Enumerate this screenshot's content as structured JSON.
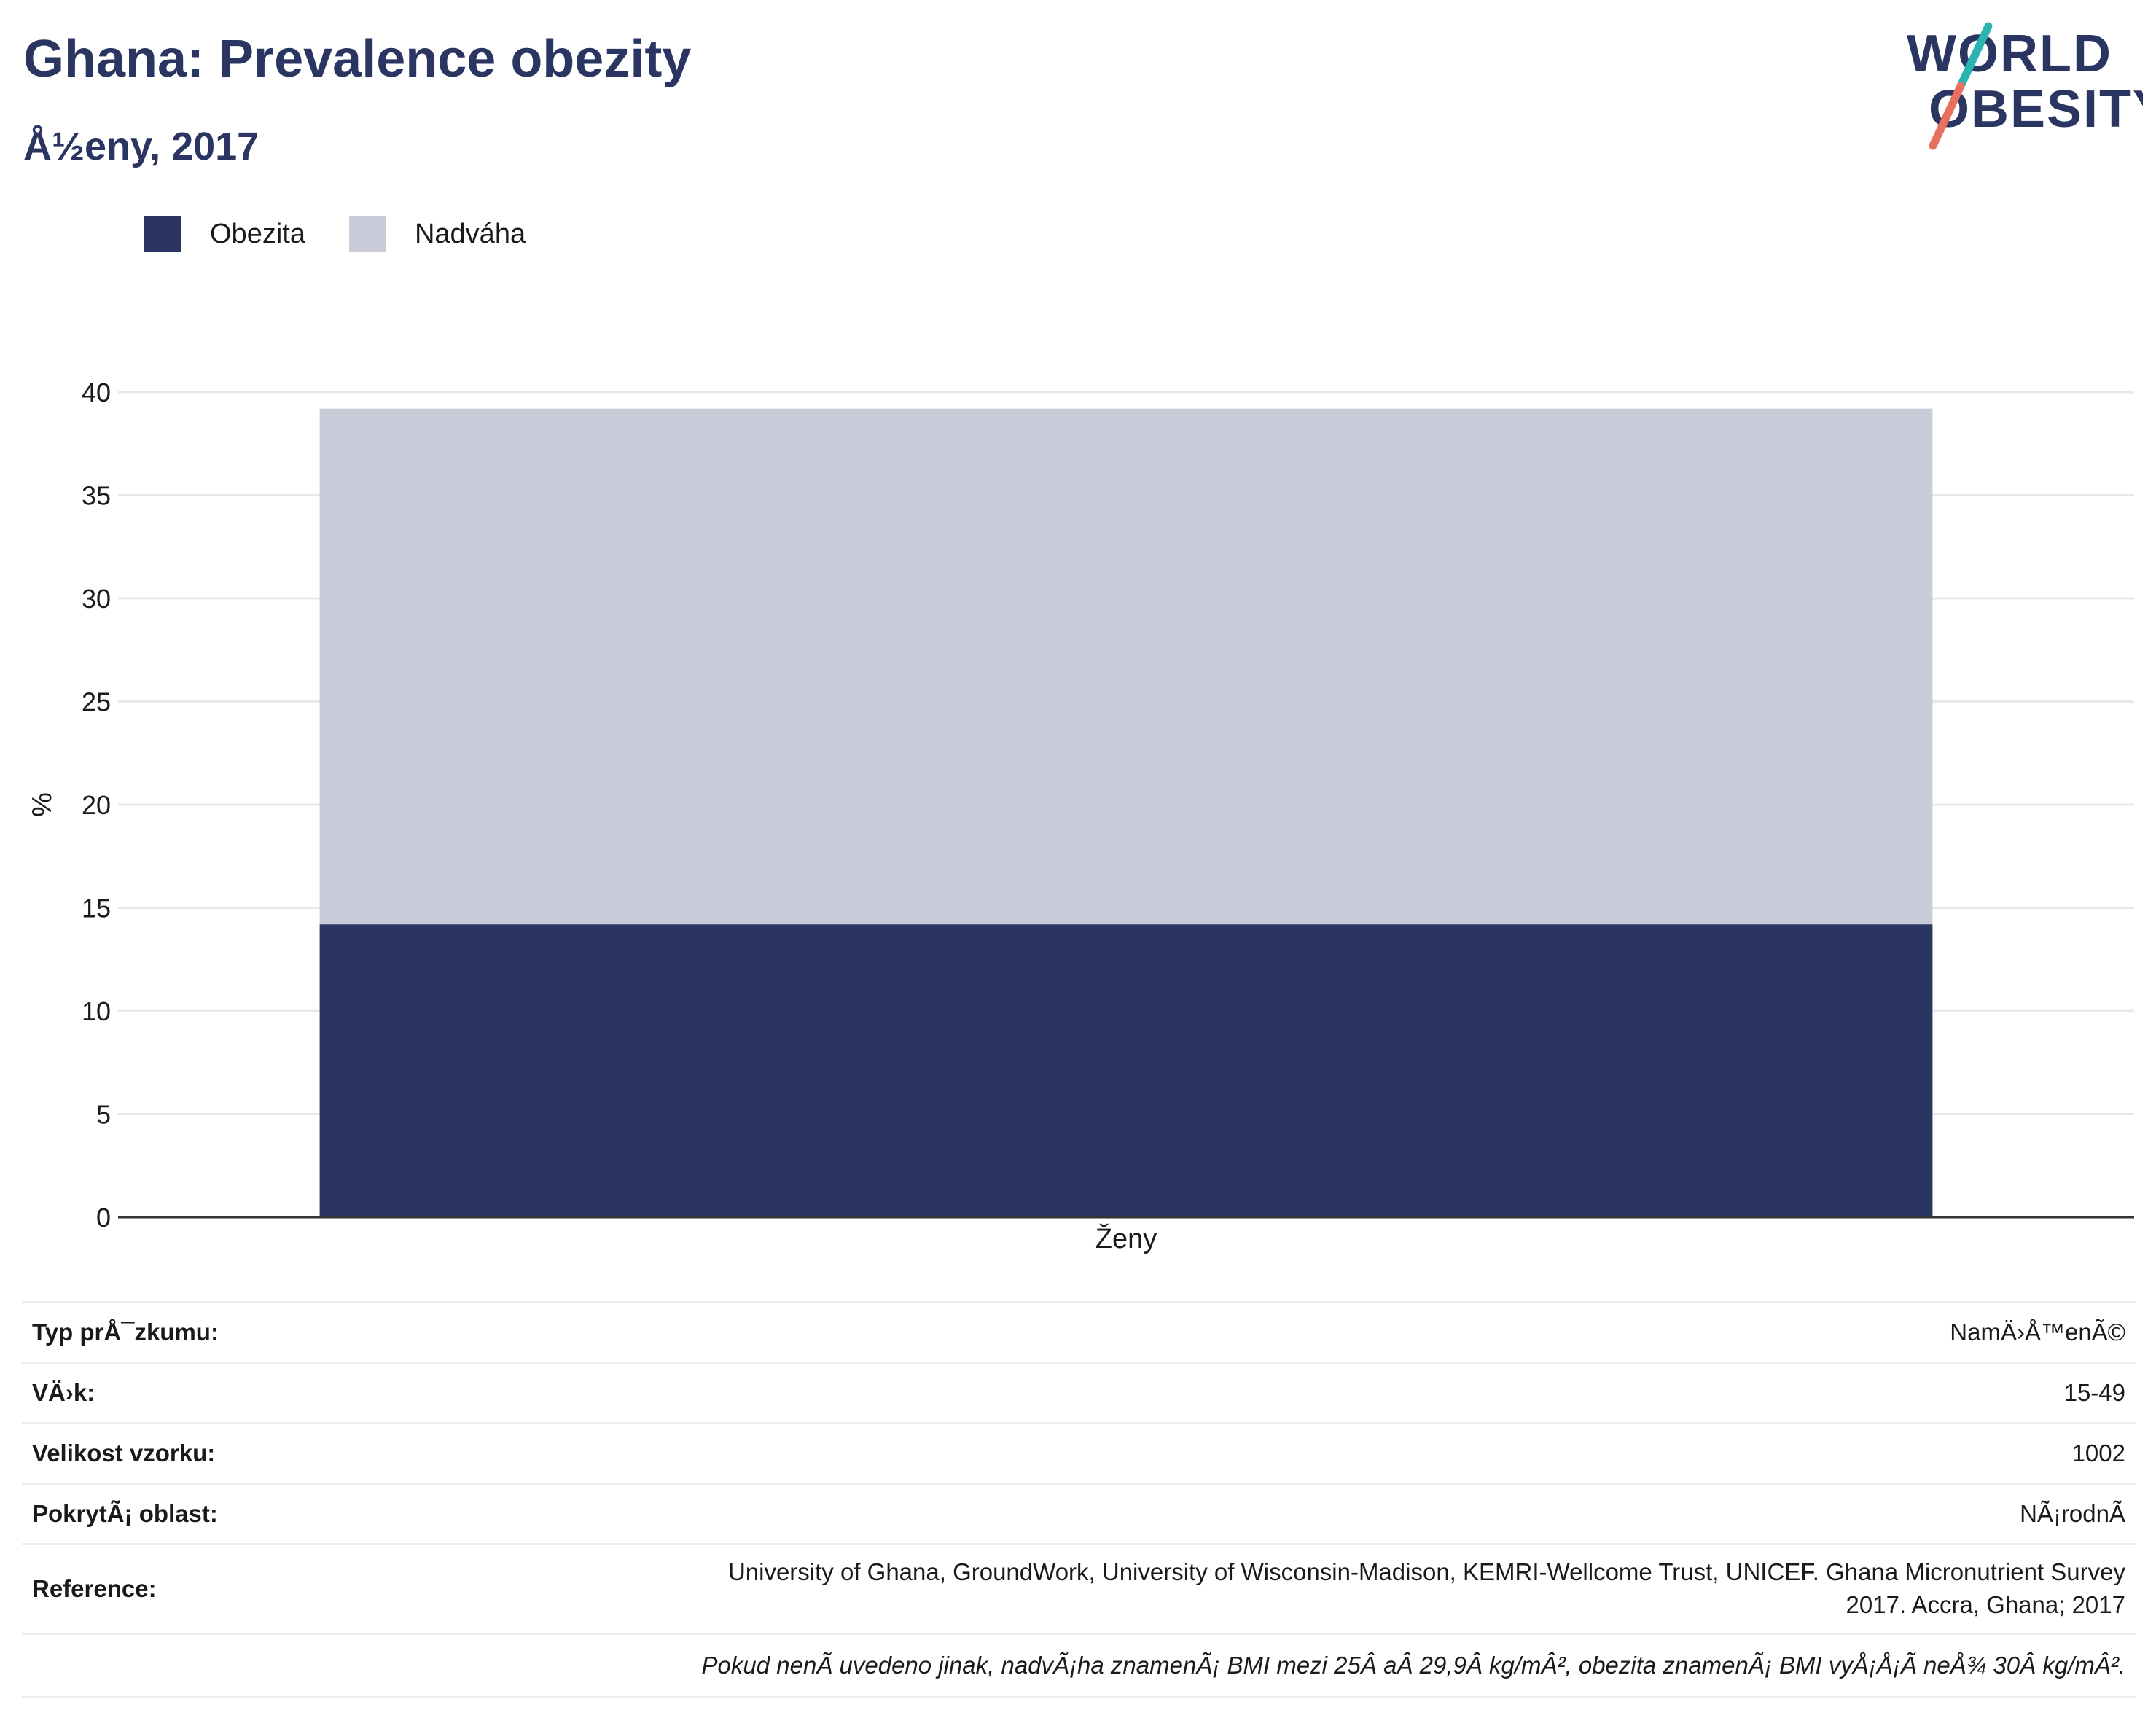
{
  "header": {
    "title": "Ghana: Prevalence obezity",
    "subtitle": "Å½eny, 2017"
  },
  "logo": {
    "line1": "WORLD",
    "line2": "OBESITY",
    "text_color": "#2a3561",
    "slash_color_top": "#2bb3b1",
    "slash_color_bottom": "#e8705e"
  },
  "legend": [
    {
      "name": "Obezita",
      "color": "#2a3561"
    },
    {
      "name": "Nadváha",
      "color": "#c9ccd8"
    }
  ],
  "chart_data": {
    "type": "bar",
    "stacked": true,
    "categories": [
      "Ženy"
    ],
    "series": [
      {
        "name": "Obezita",
        "values": [
          14.2
        ],
        "color": "#2a3561"
      },
      {
        "name": "Nadváha",
        "values": [
          25.0
        ],
        "color": "#c9ccd8"
      }
    ],
    "title": "Ghana: Prevalence obezity",
    "subtitle": "Å½eny, 2017",
    "xlabel": "",
    "ylabel": "%",
    "ylim": [
      0,
      40
    ],
    "yticks": [
      0,
      5,
      10,
      15,
      20,
      25,
      30,
      35,
      40
    ],
    "grid": true,
    "legend_position": "top-left"
  },
  "info": {
    "rows": [
      {
        "label": "Typ prÅ¯zkumu:",
        "value": "NamÄ›Å™enÃ©"
      },
      {
        "label": "VÄ›k:",
        "value": "15-49"
      },
      {
        "label": "Velikost vzorku:",
        "value": "1002"
      },
      {
        "label": "PokrytÃ¡ oblast:",
        "value": "NÃ¡rodnÃ"
      }
    ],
    "reference_label": "Reference:",
    "reference_line1": "University of Ghana, GroundWork, University of Wisconsin-Madison, KEMRI-Wellcome Trust, UNICEF. Ghana Micronutrient Survey",
    "reference_line2": "2017. Accra, Ghana; 2017",
    "note": "Pokud nenÃ uvedeno jinak, nadvÃ¡ha znamenÃ¡ BMI mezi 25Â aÂ 29,9Â kg/mÂ², obezita znamenÃ¡ BMI vyÅ¡Å¡Ã neÅ¾ 30Â kg/mÂ²."
  }
}
